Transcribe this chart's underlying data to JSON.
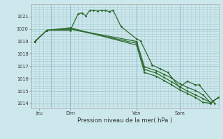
{
  "title": "Pression niveau de la mer( hPa )",
  "bg_color": "#cce8ec",
  "grid_color": "#aaccd4",
  "line_color": "#2d6a2d",
  "yticks": [
    1014,
    1015,
    1016,
    1017,
    1018,
    1019,
    1020,
    1021
  ],
  "ylim": [
    1013.6,
    1022.0
  ],
  "xlim": [
    -0.5,
    23.5
  ],
  "xtick_labels": [
    "Jeu",
    "Dim",
    "Ven",
    "Sam"
  ],
  "xtick_pos": [
    0.5,
    4.5,
    13.0,
    18.5
  ],
  "vlines_x": [
    2.0,
    4.5,
    13.0,
    18.5
  ],
  "series1_x": [
    0.0,
    1.5,
    4.5,
    5.5,
    6.0,
    6.5,
    7.0,
    7.5,
    8.0,
    8.5,
    9.0,
    9.5,
    10.0,
    11.0,
    13.0,
    13.5,
    15.0,
    16.0,
    17.0,
    18.5,
    19.5,
    20.5,
    21.0,
    23.0
  ],
  "series1_y": [
    1019.0,
    1019.9,
    1019.9,
    1021.2,
    1021.3,
    1021.05,
    1021.5,
    1021.5,
    1021.45,
    1021.5,
    1021.5,
    1021.4,
    1021.5,
    1020.2,
    1019.2,
    1019.05,
    1017.1,
    1016.8,
    1016.5,
    1015.3,
    1015.8,
    1015.5,
    1015.5,
    1014.0
  ],
  "series2_x": [
    0.0,
    1.5,
    4.5,
    13.0,
    14.0,
    15.5,
    16.5,
    17.5,
    18.5,
    19.5,
    20.5,
    21.5,
    22.5,
    23.5
  ],
  "series2_y": [
    1019.0,
    1019.9,
    1020.0,
    1019.0,
    1016.95,
    1016.65,
    1016.35,
    1016.05,
    1015.6,
    1015.3,
    1015.05,
    1014.7,
    1014.05,
    1014.5
  ],
  "series3_x": [
    0.0,
    1.5,
    4.5,
    13.0,
    14.0,
    15.5,
    16.5,
    17.5,
    18.5,
    19.5,
    20.5,
    21.5,
    22.5,
    23.5
  ],
  "series3_y": [
    1019.0,
    1019.9,
    1020.0,
    1018.85,
    1016.75,
    1016.45,
    1016.1,
    1015.75,
    1015.35,
    1015.0,
    1014.7,
    1014.4,
    1014.05,
    1014.5
  ],
  "series4_x": [
    0.0,
    1.5,
    4.5,
    13.0,
    14.0,
    15.5,
    16.5,
    17.5,
    18.5,
    19.5,
    20.5,
    21.5,
    22.5,
    23.5
  ],
  "series4_y": [
    1019.0,
    1019.9,
    1020.1,
    1018.7,
    1016.5,
    1016.2,
    1015.85,
    1015.5,
    1015.1,
    1014.8,
    1014.5,
    1014.1,
    1014.0,
    1014.5
  ]
}
